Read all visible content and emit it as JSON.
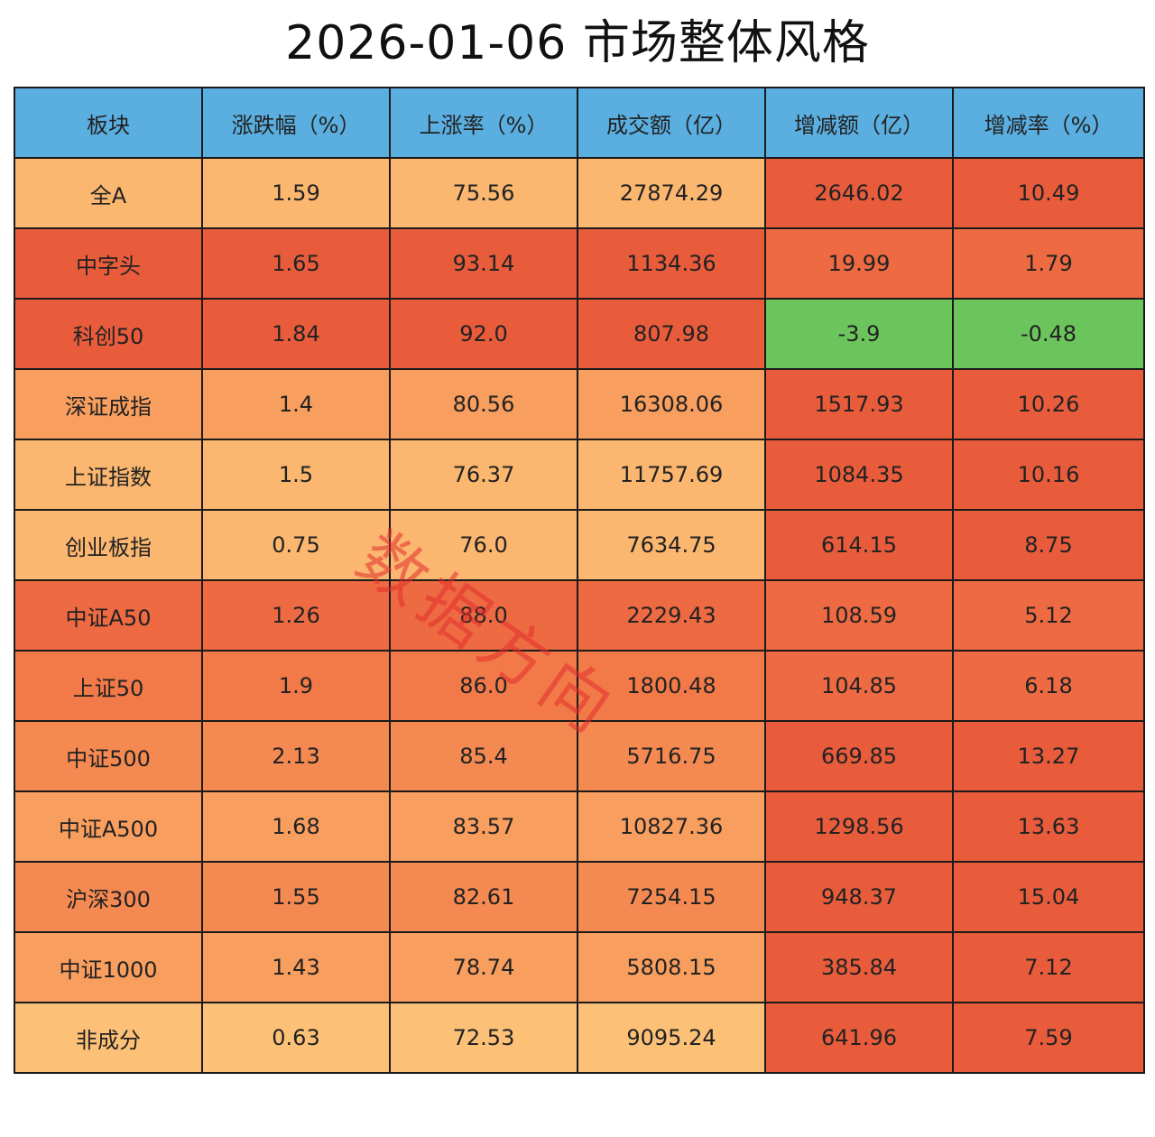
{
  "title": "2026-01-06 市场整体风格",
  "watermark": "数据方向",
  "header_color": "#5aaee0",
  "chart_data": {
    "type": "table",
    "title": "2026-01-06 市场整体风格",
    "columns": [
      "板块",
      "涨跌幅（%）",
      "上涨率（%）",
      "成交额（亿）",
      "增减额（亿）",
      "增减率（%）"
    ],
    "rows": [
      [
        "全A",
        "1.59",
        "75.56",
        "27874.29",
        "2646.02",
        "10.49"
      ],
      [
        "中字头",
        "1.65",
        "93.14",
        "1134.36",
        "19.99",
        "1.79"
      ],
      [
        "科创50",
        "1.84",
        "92.0",
        "807.98",
        "-3.9",
        "-0.48"
      ],
      [
        "深证成指",
        "1.4",
        "80.56",
        "16308.06",
        "1517.93",
        "10.26"
      ],
      [
        "上证指数",
        "1.5",
        "76.37",
        "11757.69",
        "1084.35",
        "10.16"
      ],
      [
        "创业板指",
        "0.75",
        "76.0",
        "7634.75",
        "614.15",
        "8.75"
      ],
      [
        "中证A50",
        "1.26",
        "88.0",
        "2229.43",
        "108.59",
        "5.12"
      ],
      [
        "上证50",
        "1.9",
        "86.0",
        "1800.48",
        "104.85",
        "6.18"
      ],
      [
        "中证500",
        "2.13",
        "85.4",
        "5716.75",
        "669.85",
        "13.27"
      ],
      [
        "中证A500",
        "1.68",
        "83.57",
        "10827.36",
        "1298.56",
        "13.63"
      ],
      [
        "沪深300",
        "1.55",
        "82.61",
        "7254.15",
        "948.37",
        "15.04"
      ],
      [
        "中证1000",
        "1.43",
        "78.74",
        "5808.15",
        "385.84",
        "7.12"
      ],
      [
        "非成分",
        "0.63",
        "72.53",
        "9095.24",
        "641.96",
        "7.59"
      ]
    ],
    "row_colors": [
      "#fbb66f",
      "#e85c3c",
      "#e85c3c",
      "#f89e5e",
      "#fbb66f",
      "#fbb66f",
      "#ee6a42",
      "#f17a48",
      "#f48a52",
      "#f89e5e",
      "#f48a52",
      "#f89e5e",
      "#fcc177"
    ],
    "change_colors": [
      "#e85c3c",
      "#ee6a42",
      "#6cc55c",
      "#e85c3c",
      "#e85c3c",
      "#e85c3c",
      "#ee6a42",
      "#ee6a42",
      "#e85c3c",
      "#e85c3c",
      "#e85c3c",
      "#e85c3c",
      "#e85c3c"
    ]
  }
}
